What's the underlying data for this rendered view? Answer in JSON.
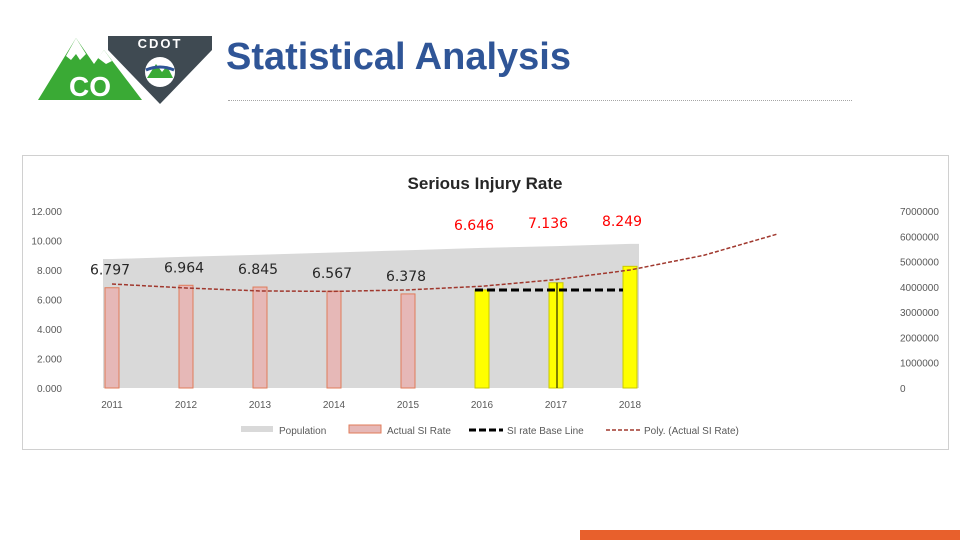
{
  "page": {
    "title": "Statistical Analysis"
  },
  "logo": {
    "agency_text": "CDOT",
    "state_text": "CO",
    "green": "#3aaa35",
    "dark": "#3f4a52"
  },
  "colors": {
    "title": "#2f5597",
    "population_area": "#d9d9d9",
    "actual_bar_fill": "#e6b8b7",
    "actual_bar_stroke": "#e07b5a",
    "highlight_bar_fill": "#ffff00",
    "highlight_bar_stroke": "#c9c900",
    "trend_line": "#a0382e",
    "label_red": "#ff0000",
    "label_dark": "#262626",
    "accent_orange": "#e8602c"
  },
  "chart_data": {
    "type": "bar",
    "title": "Serious Injury Rate",
    "categories": [
      "2011",
      "2012",
      "2013",
      "2014",
      "2015",
      "2016",
      "2017",
      "2018"
    ],
    "series": [
      {
        "name": "Population",
        "type": "area",
        "axis": "right",
        "values": [
          5100000,
          5190000,
          5270000,
          5360000,
          5450000,
          5540000,
          5610000,
          5700000
        ]
      },
      {
        "name": "Actual SI Rate",
        "type": "bar",
        "axis": "left",
        "values": [
          6.797,
          6.964,
          6.845,
          6.567,
          6.378,
          6.646,
          7.136,
          8.249
        ],
        "highlight": [
          false,
          false,
          false,
          false,
          false,
          true,
          true,
          true
        ]
      },
      {
        "name": "SI rate Base Line",
        "type": "dashed-line",
        "axis": "left",
        "x_range": [
          "2016",
          "2018"
        ],
        "value": 6.646
      },
      {
        "name": "Poly. (Actual SI Rate)",
        "type": "trendline",
        "axis": "left",
        "x": [
          2011,
          2012,
          2013,
          2014,
          2015,
          2016,
          2017,
          2018,
          2019,
          2020
        ],
        "values": [
          7.05,
          6.78,
          6.58,
          6.55,
          6.65,
          6.9,
          7.35,
          8.0,
          9.0,
          10.45
        ]
      }
    ],
    "data_labels": [
      "6.797",
      "6.964",
      "6.845",
      "6.567",
      "6.378",
      "6.646",
      "7.136",
      "8.249"
    ],
    "data_label_red": [
      false,
      false,
      false,
      false,
      false,
      true,
      true,
      true
    ],
    "y_left_ticks": [
      "0.000",
      "2.000",
      "4.000",
      "6.000",
      "8.000",
      "10.000",
      "12.000"
    ],
    "y_left_range": [
      0,
      12
    ],
    "y_right_ticks": [
      "0",
      "1000000",
      "2000000",
      "3000000",
      "4000000",
      "5000000",
      "6000000",
      "7000000"
    ],
    "y_right_range": [
      0,
      7000000
    ],
    "legend_position": "bottom",
    "grid": false
  }
}
